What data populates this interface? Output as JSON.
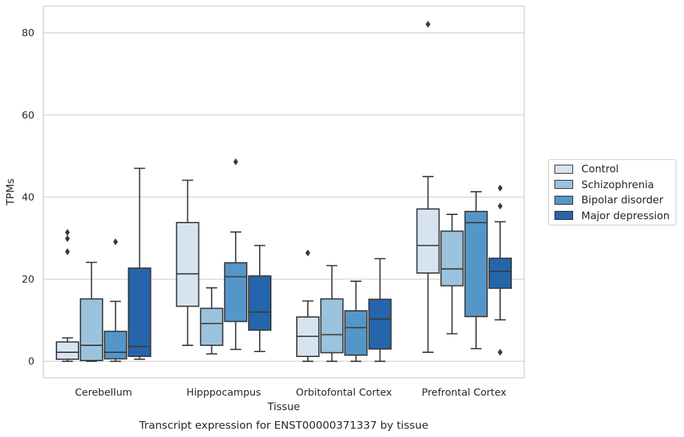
{
  "chart_data": {
    "type": "box",
    "title": "Transcript expression for ENST00000371337 by tissue",
    "xlabel": "Tissue",
    "ylabel": "TPMs",
    "ylim": [
      -4,
      86.5
    ],
    "yticks": [
      0,
      20,
      40,
      60,
      80
    ],
    "grid": "horizontal",
    "legend_position": "right",
    "categories": [
      "Cerebellum",
      "Hipppocampus",
      "Orbitofontal Cortex",
      "Prefrontal Cortex"
    ],
    "series": [
      {
        "name": "Control",
        "color": "#d6e4f2",
        "boxes": [
          {
            "min": 0,
            "q1": 0.5,
            "median": 2.2,
            "q3": 4.7,
            "max": 5.7,
            "outliers": [
              26.7,
              29.9,
              31.4
            ]
          },
          {
            "min": 3.9,
            "q1": 13.4,
            "median": 21.3,
            "q3": 33.8,
            "max": 44.1,
            "outliers": []
          },
          {
            "min": 0,
            "q1": 1.2,
            "median": 6.1,
            "q3": 10.8,
            "max": 14.7,
            "outliers": [
              26.4
            ]
          },
          {
            "min": 2.2,
            "q1": 21.5,
            "median": 28.2,
            "q3": 37.1,
            "max": 45.0,
            "outliers": [
              82.1
            ]
          }
        ]
      },
      {
        "name": "Schizophrenia",
        "color": "#9bc3dd",
        "boxes": [
          {
            "min": 0,
            "q1": 0.2,
            "median": 3.9,
            "q3": 15.2,
            "max": 24.1,
            "outliers": []
          },
          {
            "min": 1.8,
            "q1": 3.9,
            "median": 9.2,
            "q3": 12.9,
            "max": 17.9,
            "outliers": []
          },
          {
            "min": 0,
            "q1": 2.1,
            "median": 6.5,
            "q3": 15.2,
            "max": 23.3,
            "outliers": []
          },
          {
            "min": 6.7,
            "q1": 18.4,
            "median": 22.5,
            "q3": 31.7,
            "max": 35.8,
            "outliers": []
          }
        ]
      },
      {
        "name": "Bipolar disorder",
        "color": "#5596c8",
        "boxes": [
          {
            "min": 0,
            "q1": 0.6,
            "median": 2.2,
            "q3": 7.3,
            "max": 14.6,
            "outliers": [
              29.1
            ]
          },
          {
            "min": 2.9,
            "q1": 9.7,
            "median": 20.6,
            "q3": 24.0,
            "max": 31.5,
            "outliers": [
              48.6
            ]
          },
          {
            "min": 0,
            "q1": 1.5,
            "median": 8.2,
            "q3": 12.3,
            "max": 19.5,
            "outliers": []
          },
          {
            "min": 3.1,
            "q1": 10.9,
            "median": 33.8,
            "q3": 36.5,
            "max": 41.3,
            "outliers": []
          }
        ]
      },
      {
        "name": "Major depression",
        "color": "#2565ab",
        "boxes": [
          {
            "min": 0.5,
            "q1": 1.2,
            "median": 3.6,
            "q3": 22.7,
            "max": 47.0,
            "outliers": []
          },
          {
            "min": 2.4,
            "q1": 7.6,
            "median": 12.0,
            "q3": 20.8,
            "max": 28.2,
            "outliers": []
          },
          {
            "min": 0,
            "q1": 3.0,
            "median": 10.3,
            "q3": 15.1,
            "max": 25.0,
            "outliers": []
          },
          {
            "min": 10.1,
            "q1": 17.8,
            "median": 21.9,
            "q3": 25.1,
            "max": 34.0,
            "outliers": [
              2.2,
              37.8,
              42.2
            ]
          }
        ]
      }
    ]
  }
}
